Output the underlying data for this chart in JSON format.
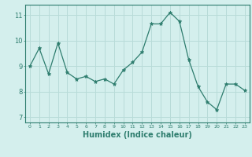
{
  "x": [
    0,
    1,
    2,
    3,
    4,
    5,
    6,
    7,
    8,
    9,
    10,
    11,
    12,
    13,
    14,
    15,
    16,
    17,
    18,
    19,
    20,
    21,
    22,
    23
  ],
  "y": [
    9.0,
    9.7,
    8.7,
    9.9,
    8.75,
    8.5,
    8.6,
    8.4,
    8.5,
    8.3,
    8.85,
    9.15,
    9.55,
    10.65,
    10.65,
    11.1,
    10.75,
    9.25,
    8.2,
    7.6,
    7.3,
    8.3,
    8.3,
    8.05
  ],
  "line_color": "#2e7d6e",
  "marker": "*",
  "marker_color": "#2e7d6e",
  "bg_color": "#d4efed",
  "grid_color": "#b8dbd8",
  "axis_color": "#2e7d6e",
  "xlabel": "Humidex (Indice chaleur)",
  "xlabel_fontsize": 7,
  "yticks": [
    7,
    8,
    9,
    10,
    11
  ],
  "xticks": [
    0,
    1,
    2,
    3,
    4,
    5,
    6,
    7,
    8,
    9,
    10,
    11,
    12,
    13,
    14,
    15,
    16,
    17,
    18,
    19,
    20,
    21,
    22,
    23
  ],
  "ylim": [
    6.8,
    11.4
  ],
  "xlim": [
    -0.5,
    23.5
  ]
}
